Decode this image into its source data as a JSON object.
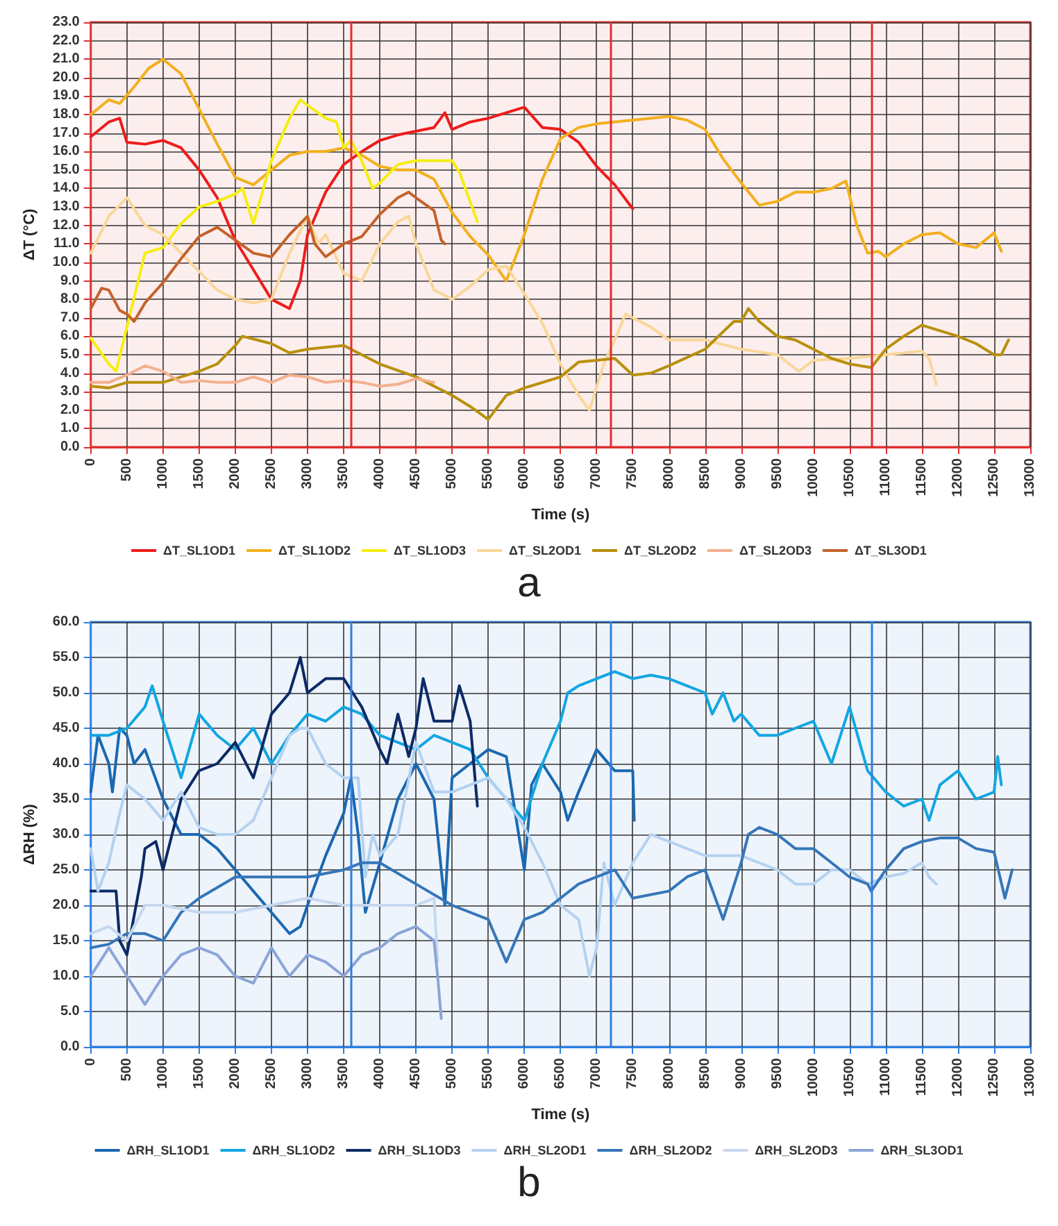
{
  "chart_data": [
    {
      "type": "line",
      "title": "a",
      "xlabel": "Time (s)",
      "ylabel": "ΔT (°C)",
      "legend": "bottom",
      "grid": true,
      "marker": "none",
      "line_style": "solid",
      "xlim": [
        0,
        13000
      ],
      "xticks": [
        0,
        500,
        1000,
        1500,
        2000,
        2500,
        3000,
        3500,
        4000,
        4500,
        5000,
        5500,
        6000,
        6500,
        7000,
        7500,
        8000,
        8500,
        9000,
        9500,
        10000,
        10500,
        11000,
        11500,
        12000,
        12500,
        13000
      ],
      "ylim": [
        0,
        23
      ],
      "yticks": [
        {
          "value": 0,
          "label": "0.0"
        },
        {
          "value": 1,
          "label": "1.0"
        },
        {
          "value": 2,
          "label": "2.0"
        },
        {
          "value": 3,
          "label": "3.0"
        },
        {
          "value": 4,
          "label": "4.0"
        },
        {
          "value": 5,
          "label": "5.0"
        },
        {
          "value": 6,
          "label": "6.0"
        },
        {
          "value": 7,
          "label": "7.0"
        },
        {
          "value": 8,
          "label": "8.0"
        },
        {
          "value": 9,
          "label": "9.0"
        },
        {
          "value": 10,
          "label": "10.0"
        },
        {
          "value": 11,
          "label": "11.0"
        },
        {
          "value": 12,
          "label": "12.0"
        },
        {
          "value": 13,
          "label": "13.0"
        },
        {
          "value": 14,
          "label": "14.0"
        },
        {
          "value": 15,
          "label": "15.0"
        },
        {
          "value": 16,
          "label": "16.0"
        },
        {
          "value": 17,
          "label": "17.0"
        },
        {
          "value": 18,
          "label": "18.0"
        },
        {
          "value": 19,
          "label": "19.0"
        },
        {
          "value": 20,
          "label": "20.0"
        },
        {
          "value": 21,
          "label": "21.0"
        },
        {
          "value": 22,
          "label": "22.0"
        },
        {
          "value": 23,
          "label": "23.0"
        }
      ],
      "ref_lines": [
        {
          "axis": "x",
          "value": 3600,
          "color": "#e03030"
        },
        {
          "axis": "x",
          "value": 7200,
          "color": "#e03030"
        },
        {
          "axis": "x",
          "value": 10800,
          "color": "#e03030"
        }
      ],
      "series": [
        {
          "name": "ΔT_SL1OD1",
          "color": "#ee1c1c",
          "x": [
            0,
            250,
            400,
            500,
            750,
            1000,
            1250,
            1500,
            1750,
            2000,
            2250,
            2500,
            2750,
            2900,
            3000,
            3250,
            3500,
            3750,
            4000,
            4250,
            4500,
            4750,
            4900,
            5000,
            5250,
            5500,
            6000,
            6250,
            6500,
            6750,
            7000,
            7250,
            7500
          ],
          "values": [
            16.8,
            17.6,
            17.8,
            16.5,
            16.4,
            16.6,
            16.2,
            15.0,
            13.5,
            11.2,
            9.6,
            8.0,
            7.5,
            9.0,
            11.5,
            13.8,
            15.3,
            16.0,
            16.6,
            16.9,
            17.1,
            17.3,
            18.1,
            17.2,
            17.6,
            17.8,
            18.4,
            17.3,
            17.2,
            16.5,
            15.2,
            14.2,
            12.9
          ]
        },
        {
          "name": "ΔT_SL1OD2",
          "color": "#f2b01e",
          "x": [
            0,
            250,
            400,
            600,
            800,
            1000,
            1250,
            1500,
            1750,
            2000,
            2250,
            2500,
            2750,
            3000,
            3250,
            3500,
            3750,
            4000,
            4250,
            4500,
            4750,
            5000,
            5250,
            5500,
            5750,
            6000,
            6250,
            6500,
            6750,
            7000,
            7500,
            8000,
            8250,
            8500,
            8750,
            9000,
            9250,
            9500,
            9750,
            10000,
            10250,
            10450,
            10600,
            10750,
            10900,
            11000,
            11250,
            11500,
            11750,
            12000,
            12250,
            12500,
            12600
          ],
          "values": [
            18.0,
            18.8,
            18.6,
            19.5,
            20.5,
            21.0,
            20.2,
            18.3,
            16.4,
            14.6,
            14.2,
            15.0,
            15.8,
            16.0,
            16.0,
            16.2,
            15.8,
            15.2,
            15.0,
            15.0,
            14.5,
            12.7,
            11.4,
            10.4,
            9.0,
            11.5,
            14.5,
            16.7,
            17.3,
            17.5,
            17.7,
            17.9,
            17.7,
            17.2,
            15.6,
            14.3,
            13.1,
            13.3,
            13.8,
            13.8,
            14.0,
            14.4,
            12.0,
            10.5,
            10.6,
            10.3,
            11.0,
            11.5,
            11.6,
            11.0,
            10.8,
            11.6,
            10.6
          ]
        },
        {
          "name": "ΔT_SL1OD3",
          "color": "#f5ee10",
          "x": [
            0,
            250,
            350,
            500,
            750,
            1000,
            1250,
            1500,
            1750,
            2000,
            2100,
            2250,
            2500,
            2750,
            2900,
            3000,
            3250,
            3400,
            3500,
            3600,
            3750,
            3900,
            4000,
            4250,
            4500,
            4750,
            5000,
            5100,
            5350
          ],
          "values": [
            5.9,
            4.5,
            4.1,
            6.5,
            10.5,
            10.8,
            12.1,
            13.0,
            13.3,
            13.7,
            14.0,
            12.1,
            15.5,
            17.8,
            18.8,
            18.5,
            17.8,
            17.6,
            16.2,
            16.6,
            15.5,
            14.0,
            14.3,
            15.3,
            15.5,
            15.5,
            15.5,
            14.9,
            12.2
          ]
        },
        {
          "name": "ΔT_SL2OD1",
          "color": "#f9d79a",
          "x": [
            0,
            250,
            500,
            750,
            1000,
            1250,
            1500,
            1750,
            2000,
            2250,
            2500,
            2750,
            3000,
            3150,
            3250,
            3500,
            3750,
            4000,
            4250,
            4400,
            4500,
            4750,
            5000,
            5250,
            5500,
            5750,
            6000,
            6250,
            6500,
            6750,
            6900,
            7100,
            7250,
            7400,
            7750,
            8000,
            8500,
            9000,
            9500,
            9800,
            10000,
            10500,
            10750,
            11000,
            11500,
            11600,
            11700
          ],
          "values": [
            10.5,
            12.5,
            13.5,
            12.0,
            11.5,
            10.5,
            9.5,
            8.5,
            8.0,
            7.8,
            8.0,
            10.5,
            12.5,
            11.0,
            11.5,
            9.4,
            9.0,
            11.0,
            12.2,
            12.5,
            11.0,
            8.5,
            8.0,
            8.7,
            9.6,
            9.8,
            8.3,
            6.7,
            4.5,
            2.8,
            2.0,
            4.5,
            5.8,
            7.2,
            6.5,
            5.8,
            5.8,
            5.3,
            5.0,
            4.1,
            4.7,
            4.8,
            4.9,
            5.0,
            5.2,
            4.8,
            3.4
          ]
        },
        {
          "name": "ΔT_SL2OD2",
          "color": "#b8900c",
          "x": [
            0,
            250,
            500,
            1000,
            1250,
            1500,
            1750,
            2000,
            2100,
            2500,
            2750,
            3000,
            3250,
            3500,
            3750,
            4000,
            4500,
            5000,
            5250,
            5500,
            5750,
            6000,
            6500,
            6750,
            7000,
            7250,
            7500,
            7750,
            8000,
            8500,
            8900,
            9000,
            9100,
            9250,
            9500,
            9750,
            10000,
            10250,
            10500,
            10800,
            11000,
            11250,
            11500,
            11750,
            12000,
            12250,
            12500,
            12600,
            12700
          ],
          "values": [
            3.3,
            3.2,
            3.5,
            3.5,
            3.8,
            4.1,
            4.5,
            5.5,
            6.0,
            5.6,
            5.1,
            5.3,
            5.4,
            5.5,
            5.0,
            4.5,
            3.8,
            2.8,
            2.2,
            1.5,
            2.8,
            3.2,
            3.8,
            4.6,
            4.7,
            4.8,
            3.9,
            4.0,
            4.4,
            5.3,
            6.8,
            6.8,
            7.5,
            6.8,
            6.0,
            5.8,
            5.3,
            4.8,
            4.5,
            4.3,
            5.3,
            6.0,
            6.6,
            6.3,
            6.0,
            5.6,
            5.0,
            5.0,
            5.8
          ]
        },
        {
          "name": "ΔT_SL2OD3",
          "color": "#f2b08e",
          "x": [
            0,
            250,
            500,
            750,
            1000,
            1250,
            1500,
            1750,
            2000,
            2250,
            2500,
            2750,
            3000,
            3250,
            3500,
            3750,
            4000,
            4250,
            4500,
            4750
          ],
          "values": [
            3.5,
            3.5,
            3.9,
            4.4,
            4.1,
            3.5,
            3.6,
            3.5,
            3.5,
            3.8,
            3.5,
            3.9,
            3.8,
            3.5,
            3.6,
            3.5,
            3.3,
            3.4,
            3.7,
            3.5
          ]
        },
        {
          "name": "ΔT_SL3OD1",
          "color": "#c4622a",
          "x": [
            0,
            150,
            250,
            400,
            500,
            600,
            750,
            1000,
            1250,
            1500,
            1750,
            2000,
            2250,
            2500,
            2750,
            3000,
            3100,
            3250,
            3500,
            3750,
            4000,
            4250,
            4400,
            4500,
            4750,
            4850,
            4900
          ],
          "values": [
            7.5,
            8.6,
            8.5,
            7.4,
            7.2,
            6.8,
            7.8,
            8.9,
            10.2,
            11.4,
            11.9,
            11.2,
            10.5,
            10.3,
            11.5,
            12.5,
            11.0,
            10.3,
            11.0,
            11.4,
            12.6,
            13.5,
            13.8,
            13.5,
            12.8,
            11.2,
            11.0
          ]
        }
      ]
    },
    {
      "type": "line",
      "title": "b",
      "xlabel": "Time (s)",
      "ylabel": "ΔRH (%)",
      "legend": "bottom",
      "grid": true,
      "marker": "none",
      "line_style": "solid",
      "xlim": [
        0,
        13000
      ],
      "xticks": [
        0,
        500,
        1000,
        1500,
        2000,
        2500,
        3000,
        3500,
        4000,
        4500,
        5000,
        5500,
        6000,
        6500,
        7000,
        7500,
        8000,
        8500,
        9000,
        9500,
        10000,
        10500,
        11000,
        11500,
        12000,
        12500,
        13000
      ],
      "ylim": [
        0,
        60
      ],
      "yticks": [
        {
          "value": 0,
          "label": "0.0"
        },
        {
          "value": 5,
          "label": "5.0"
        },
        {
          "value": 10,
          "label": "10.0"
        },
        {
          "value": 15,
          "label": "15.0"
        },
        {
          "value": 20,
          "label": "20.0"
        },
        {
          "value": 25,
          "label": "25.0"
        },
        {
          "value": 30,
          "label": "30.0"
        },
        {
          "value": 35,
          "label": "35.0"
        },
        {
          "value": 40,
          "label": "40.0"
        },
        {
          "value": 45,
          "label": "45.0"
        },
        {
          "value": 50,
          "label": "50.0"
        },
        {
          "value": 55,
          "label": "55.0"
        },
        {
          "value": 60,
          "label": "60.0"
        }
      ],
      "ref_lines": [
        {
          "axis": "x",
          "value": 3600,
          "color": "#2f7fe0"
        },
        {
          "axis": "x",
          "value": 7200,
          "color": "#2f7fe0"
        },
        {
          "axis": "x",
          "value": 10800,
          "color": "#2f7fe0"
        }
      ],
      "series": [
        {
          "name": "ΔRH_SL1OD1",
          "color": "#1b68b0",
          "x": [
            0,
            100,
            250,
            300,
            400,
            500,
            600,
            750,
            1000,
            1250,
            1500,
            1750,
            2000,
            2250,
            2500,
            2750,
            2900,
            3000,
            3250,
            3500,
            3600,
            3700,
            3800,
            4000,
            4250,
            4500,
            4750,
            4900,
            5000,
            5250,
            5500,
            5750,
            6000,
            6100,
            6250,
            6500,
            6600,
            6750,
            7000,
            7250,
            7500,
            7520
          ],
          "values": [
            36,
            44,
            40,
            36,
            45,
            44,
            40,
            42,
            35,
            30,
            30,
            28,
            25,
            22,
            19,
            16,
            17,
            20,
            27,
            33,
            38,
            30,
            19,
            26,
            35,
            40,
            35,
            20,
            38,
            40,
            42,
            41,
            25,
            37,
            40,
            36,
            32,
            36,
            42,
            39,
            39,
            32
          ]
        },
        {
          "name": "ΔRH_SL1OD2",
          "color": "#12a6e2",
          "x": [
            0,
            250,
            500,
            750,
            850,
            1000,
            1250,
            1500,
            1750,
            2000,
            2250,
            2500,
            2750,
            3000,
            3250,
            3500,
            3750,
            4000,
            4250,
            4500,
            4750,
            5000,
            5250,
            5500,
            5750,
            6000,
            6250,
            6500,
            6600,
            6750,
            7000,
            7250,
            7500,
            7750,
            8000,
            8250,
            8500,
            8600,
            8750,
            8900,
            9000,
            9250,
            9500,
            9750,
            10000,
            10250,
            10500,
            10750,
            11000,
            11250,
            11500,
            11600,
            11750,
            12000,
            12250,
            12500,
            12550,
            12600
          ],
          "values": [
            44,
            44,
            45,
            48,
            51,
            46,
            38,
            47,
            44,
            42,
            45,
            40,
            44,
            47,
            46,
            48,
            47,
            44,
            43,
            42,
            44,
            43,
            42,
            38,
            35,
            32,
            40,
            46,
            50,
            51,
            52,
            53,
            52,
            52.5,
            52,
            51,
            50,
            47,
            50,
            46,
            47,
            44,
            44,
            45,
            46,
            40,
            48,
            39,
            36,
            34,
            35,
            32,
            37,
            39,
            35,
            36,
            41,
            37
          ]
        },
        {
          "name": "ΔRH_SL1OD3",
          "color": "#0c2a66",
          "x": [
            0,
            250,
            350,
            400,
            500,
            700,
            750,
            900,
            1000,
            1250,
            1500,
            1750,
            2000,
            2250,
            2500,
            2750,
            2900,
            3000,
            3250,
            3500,
            3750,
            4000,
            4100,
            4250,
            4400,
            4500,
            4600,
            4750,
            5000,
            5100,
            5250,
            5350
          ],
          "values": [
            22,
            22,
            22,
            15,
            13,
            24,
            28,
            29,
            25,
            35,
            39,
            40,
            43,
            38,
            47,
            50,
            55,
            50,
            52,
            52,
            48,
            42,
            40,
            47,
            41,
            45,
            52,
            46,
            46,
            51,
            46,
            34
          ]
        },
        {
          "name": "ΔRH_SL2OD1",
          "color": "#b4d2f0",
          "x": [
            0,
            100,
            250,
            400,
            500,
            750,
            1000,
            1250,
            1500,
            1750,
            2000,
            2250,
            2500,
            2750,
            2900,
            3000,
            3250,
            3500,
            3700,
            3800,
            3900,
            4000,
            4250,
            4500,
            4750,
            5000,
            5250,
            5500,
            5750,
            6000,
            6250,
            6500,
            6750,
            6900,
            7000,
            7100,
            7250,
            7500,
            7750,
            8000,
            8500,
            9000,
            9500,
            9750,
            10000,
            10250,
            10500,
            10750,
            11000,
            11250,
            11500,
            11600,
            11700
          ],
          "values": [
            28,
            22,
            26,
            33,
            37,
            35,
            32,
            36,
            31,
            30,
            30,
            32,
            38,
            44,
            45,
            45,
            40,
            38,
            38,
            24,
            30,
            27,
            30,
            43,
            36,
            36,
            37,
            38,
            35,
            31,
            26,
            20,
            18,
            10,
            14,
            26,
            20,
            26,
            30,
            29,
            27,
            27,
            25,
            23,
            23,
            25,
            25,
            23,
            24,
            24.5,
            26,
            24,
            23
          ]
        },
        {
          "name": "ΔRH_SL2OD2",
          "color": "#3576b8",
          "x": [
            0,
            250,
            500,
            750,
            1000,
            1250,
            1500,
            2000,
            2250,
            2500,
            3000,
            3500,
            3750,
            4000,
            4500,
            5000,
            5500,
            5750,
            6000,
            6250,
            6500,
            6750,
            7000,
            7250,
            7500,
            8000,
            8250,
            8500,
            8750,
            9000,
            9100,
            9250,
            9500,
            9750,
            10000,
            10250,
            10500,
            10750,
            10800,
            11000,
            11250,
            11500,
            11750,
            12000,
            12250,
            12500,
            12650,
            12750
          ],
          "values": [
            14,
            14.5,
            16,
            16,
            15,
            19,
            21,
            24,
            24,
            24,
            24,
            25,
            26,
            26,
            23,
            20,
            18,
            12,
            18,
            19,
            21,
            23,
            24,
            25,
            21,
            22,
            24,
            25,
            18,
            26,
            30,
            31,
            30,
            28,
            28,
            26,
            24,
            23,
            22,
            25,
            28,
            29,
            29.5,
            29.5,
            28,
            27.5,
            21,
            25
          ]
        },
        {
          "name": "ΔRH_SL2OD3",
          "color": "#c6d8ee",
          "x": [
            0,
            250,
            500,
            750,
            1000,
            1500,
            2000,
            2500,
            3000,
            3500,
            4000,
            4500,
            4750,
            4800
          ],
          "values": [
            16,
            17,
            15,
            20,
            20,
            19,
            19,
            20,
            21,
            20,
            20,
            20,
            21,
            12
          ]
        },
        {
          "name": "ΔRH_SL3OD1",
          "color": "#8aa5d8",
          "x": [
            0,
            250,
            500,
            750,
            1000,
            1250,
            1500,
            1750,
            2000,
            2250,
            2500,
            2750,
            3000,
            3250,
            3500,
            3750,
            4000,
            4250,
            4500,
            4750,
            4800,
            4850
          ],
          "values": [
            10,
            14,
            10,
            6,
            10,
            13,
            14,
            13,
            10,
            9,
            14,
            10,
            13,
            12,
            10,
            13,
            14,
            16,
            17,
            15,
            10,
            4
          ]
        }
      ]
    }
  ]
}
